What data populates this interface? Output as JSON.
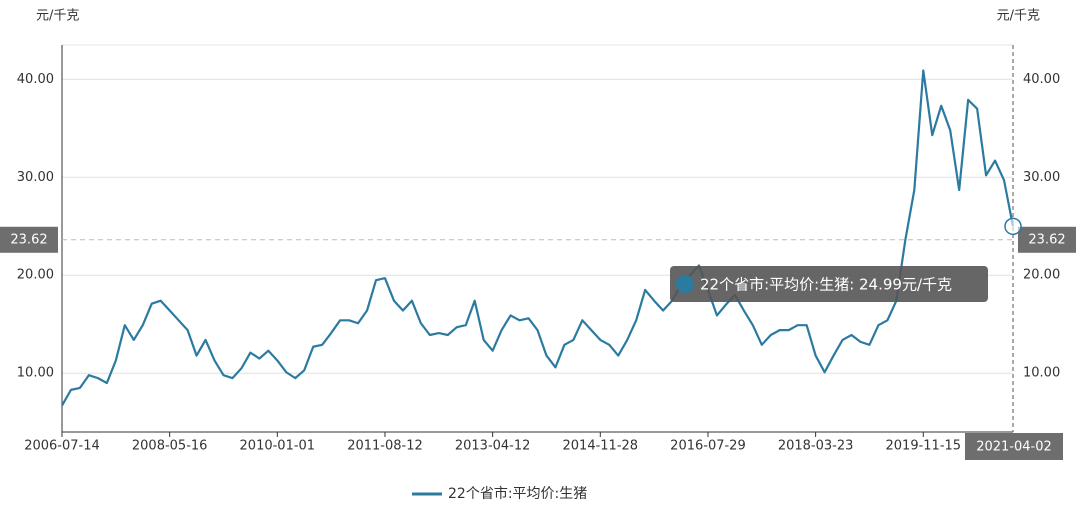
{
  "chart_data": {
    "type": "line",
    "y_axis_name": "元/千克",
    "y2_axis_name": "元/千克",
    "categories": [
      "2006-07-14",
      null,
      null,
      null,
      null,
      null,
      null,
      null,
      null,
      null,
      null,
      null,
      "2008-05-16",
      null,
      null,
      null,
      null,
      null,
      null,
      null,
      null,
      null,
      null,
      null,
      "2010-01-01",
      null,
      null,
      null,
      null,
      null,
      null,
      null,
      null,
      null,
      null,
      null,
      "2011-08-12",
      null,
      null,
      null,
      null,
      null,
      null,
      null,
      null,
      null,
      null,
      null,
      "2013-04-12",
      null,
      null,
      null,
      null,
      null,
      null,
      null,
      null,
      null,
      null,
      null,
      "2014-11-28",
      null,
      null,
      null,
      null,
      null,
      null,
      null,
      null,
      null,
      null,
      null,
      "2016-07-29",
      null,
      null,
      null,
      null,
      null,
      null,
      null,
      null,
      null,
      null,
      null,
      "2018-03-23",
      null,
      null,
      null,
      null,
      null,
      null,
      null,
      null,
      null,
      null,
      null,
      "2019-11-15",
      null,
      null,
      null,
      null,
      null,
      null,
      null,
      null,
      null,
      "2021-04-02"
    ],
    "series": [
      {
        "name": "22个省市:平均价:生猪",
        "color": "#2b7aa0",
        "values": [
          6.7,
          8.3,
          8.5,
          9.8,
          9.5,
          9.0,
          11.3,
          14.9,
          13.4,
          14.9,
          17.1,
          17.4,
          16.4,
          15.4,
          14.4,
          11.8,
          13.4,
          11.3,
          9.8,
          9.5,
          10.5,
          12.1,
          11.5,
          12.3,
          11.3,
          10.1,
          9.5,
          10.3,
          12.7,
          12.9,
          14.1,
          15.4,
          15.4,
          15.1,
          16.4,
          19.5,
          19.7,
          17.4,
          16.4,
          17.4,
          15.1,
          13.9,
          14.1,
          13.9,
          14.7,
          14.9,
          17.4,
          13.4,
          12.3,
          14.4,
          15.9,
          15.4,
          15.6,
          14.4,
          11.8,
          10.6,
          12.9,
          13.4,
          15.4,
          14.4,
          13.4,
          12.9,
          11.8,
          13.4,
          15.4,
          18.5,
          17.4,
          16.4,
          17.4,
          19.0,
          20.0,
          21.0,
          18.5,
          15.9,
          17.0,
          18.0,
          16.4,
          14.9,
          12.9,
          13.9,
          14.4,
          14.4,
          14.9,
          14.9,
          11.8,
          10.1,
          11.8,
          13.4,
          13.9,
          13.2,
          12.9,
          14.9,
          15.4,
          17.4,
          23.6,
          28.7,
          40.9,
          34.3,
          37.3,
          34.8,
          28.7,
          37.9,
          37.0,
          30.2,
          31.7,
          29.7,
          24.99
        ]
      }
    ],
    "ylim": [
      4,
      43.5
    ],
    "yticks": [
      {
        "value": 10,
        "label": "10.00"
      },
      {
        "value": 20,
        "label": "20.00"
      },
      {
        "value": 30,
        "label": "30.00"
      },
      {
        "value": 40,
        "label": "40.00"
      }
    ],
    "y2lim": [
      4,
      43.5
    ],
    "y2ticks": [
      {
        "value": 10,
        "label": "10.00"
      },
      {
        "value": 20,
        "label": "20.00"
      },
      {
        "value": 30,
        "label": "30.00"
      },
      {
        "value": 40,
        "label": "40.00"
      }
    ],
    "grid": true,
    "legend": "bottom",
    "axis_pointer_y": {
      "value": 23.62,
      "label": "23.62"
    },
    "axis_pointer_index": 106,
    "tooltip_text": "22个省市:平均价:生猪: 24.99元/千克"
  }
}
